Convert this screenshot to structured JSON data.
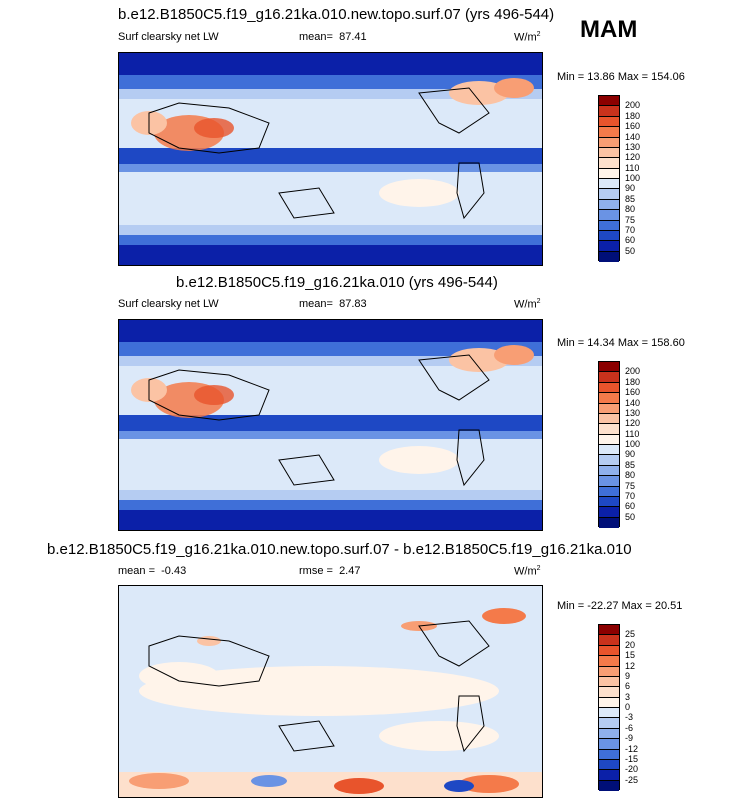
{
  "season": "MAM",
  "panels": [
    {
      "title": "b.e12.B1850C5.f19_g16.21ka.010.new.topo.surf.07 (yrs 496-544)",
      "left_label": "Surf clearsky net LW",
      "mean_label": "mean=",
      "mean_value": "87.41",
      "units": "W/m",
      "units_sup": "2",
      "minmax": "Min =  13.86 Max = 154.06"
    },
    {
      "title": "b.e12.B1850C5.f19_g16.21ka.010 (yrs 496-544)",
      "left_label": "Surf clearsky net LW",
      "mean_label": "mean=",
      "mean_value": "87.83",
      "units": "W/m",
      "units_sup": "2",
      "minmax": "Min =  14.34 Max = 158.60"
    },
    {
      "title": "b.e12.B1850C5.f19_g16.21ka.010.new.topo.surf.07 - b.e12.B1850C5.f19_g16.21ka.010",
      "mean_label": "mean =",
      "mean_value": "-0.43",
      "rmse_label": "rmse =",
      "rmse_value": "2.47",
      "units": "W/m",
      "units_sup": "2",
      "minmax": "Min = -22.27 Max =  20.51"
    }
  ],
  "colorbars": {
    "abs_levels": [
      "200",
      "180",
      "160",
      "140",
      "130",
      "120",
      "110",
      "100",
      "90",
      "85",
      "80",
      "75",
      "70",
      "60",
      "50"
    ],
    "abs_colors": [
      "#8b0000",
      "#c9321c",
      "#e8542c",
      "#f47a4a",
      "#f89e74",
      "#fbc3a4",
      "#fde0cc",
      "#fff4ea",
      "#dce9f9",
      "#b5ccf2",
      "#8fb0ec",
      "#6a93e4",
      "#3f6fd8",
      "#1e48c4",
      "#0b20a8",
      "#000f78"
    ],
    "diff_levels": [
      "25",
      "20",
      "15",
      "12",
      "9",
      "6",
      "3",
      "0",
      "-3",
      "-6",
      "-9",
      "-12",
      "-15",
      "-20",
      "-25"
    ],
    "diff_colors": [
      "#8b0000",
      "#c9321c",
      "#e8542c",
      "#f47a4a",
      "#f89e74",
      "#fbc3a4",
      "#fde0cc",
      "#fff4ea",
      "#dce9f9",
      "#b5ccf2",
      "#8fb0ec",
      "#6a93e4",
      "#3f6fd8",
      "#1e48c4",
      "#0b20a8",
      "#000f78"
    ]
  },
  "chart_data": [
    {
      "type": "heatmap",
      "title": "b.e12.B1850C5.f19_g16.21ka.010.new.topo.surf.07 (yrs 496-544)",
      "variable": "Surf clearsky net LW",
      "units": "W/m2",
      "season": "MAM",
      "mean": 87.41,
      "min": 13.86,
      "max": 154.06,
      "contour_levels": [
        50,
        60,
        70,
        75,
        80,
        85,
        90,
        100,
        110,
        120,
        130,
        140,
        160,
        180,
        200
      ]
    },
    {
      "type": "heatmap",
      "title": "b.e12.B1850C5.f19_g16.21ka.010 (yrs 496-544)",
      "variable": "Surf clearsky net LW",
      "units": "W/m2",
      "season": "MAM",
      "mean": 87.83,
      "min": 14.34,
      "max": 158.6,
      "contour_levels": [
        50,
        60,
        70,
        75,
        80,
        85,
        90,
        100,
        110,
        120,
        130,
        140,
        160,
        180,
        200
      ]
    },
    {
      "type": "heatmap",
      "title": "b.e12.B1850C5.f19_g16.21ka.010.new.topo.surf.07 - b.e12.B1850C5.f19_g16.21ka.010",
      "units": "W/m2",
      "season": "MAM",
      "mean": -0.43,
      "rmse": 2.47,
      "min": -22.27,
      "max": 20.51,
      "contour_levels": [
        -25,
        -20,
        -15,
        -12,
        -9,
        -6,
        -3,
        0,
        3,
        6,
        9,
        12,
        15,
        20,
        25
      ]
    }
  ]
}
